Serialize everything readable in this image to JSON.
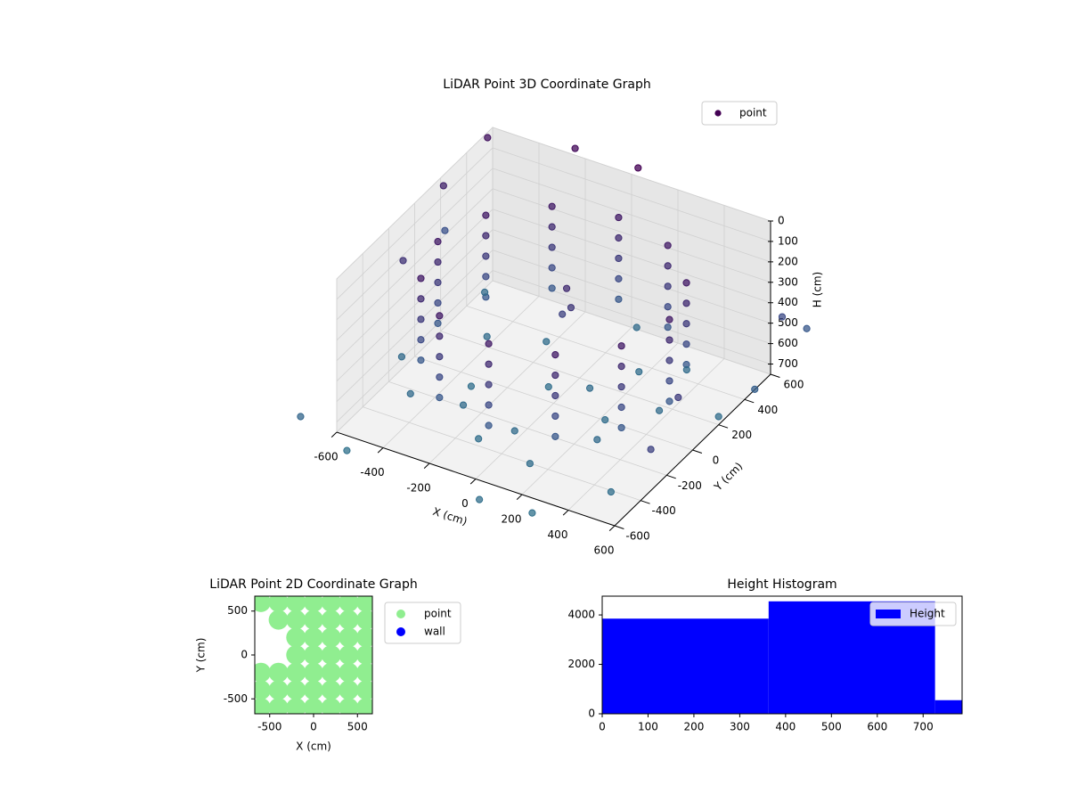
{
  "chart_data": [
    {
      "type": "scatter3d",
      "title": "LiDAR Point 3D Coordinate Graph",
      "xlabel": "X (cm)",
      "ylabel": "Y (cm)",
      "zlabel": "H (cm)",
      "xlim": [
        -600,
        600
      ],
      "ylim": [
        -600,
        600
      ],
      "zlim": [
        0,
        750
      ],
      "z_inverted": true,
      "xticks": [
        -600,
        -400,
        -200,
        0,
        200,
        400,
        600
      ],
      "yticks": [
        -600,
        -400,
        -200,
        0,
        200,
        400,
        600
      ],
      "zticks": [
        0,
        100,
        200,
        300,
        400,
        500,
        600,
        700
      ],
      "cmap": "viridis",
      "clim": [
        0,
        2000
      ],
      "grid": true,
      "series": [
        {
          "name": "point",
          "color": "#440154",
          "x": [
            500,
            433,
            250,
            0,
            -250,
            -433,
            -500,
            -433,
            -250,
            0,
            250,
            433,
            500,
            433,
            250,
            0,
            -250,
            -433,
            -500,
            -433,
            -250,
            0,
            250,
            433,
            500,
            433,
            250,
            0,
            -250,
            -433,
            -500,
            -433,
            -250,
            0,
            250,
            433,
            500,
            433,
            250,
            0,
            -250,
            -433,
            -500,
            -433,
            -250,
            0,
            250,
            433,
            500,
            433,
            250,
            0,
            -250,
            -433,
            -500,
            -433,
            -250,
            0,
            250,
            433,
            100,
            -200,
            300,
            -300,
            0,
            200,
            -100,
            400,
            -400,
            150,
            -450,
            350,
            -50,
            250,
            -250,
            500,
            -550,
            50,
            600,
            -600,
            -650,
            -700,
            700,
            650,
            -700,
            700,
            -500,
            300,
            -300,
            0,
            -650,
            700,
            100,
            -750,
            650,
            0,
            30,
            -30
          ],
          "y": [
            0,
            250,
            433,
            500,
            433,
            250,
            0,
            -250,
            -433,
            -500,
            -433,
            -250,
            0,
            250,
            433,
            500,
            433,
            250,
            0,
            -250,
            -433,
            -500,
            -433,
            -250,
            0,
            250,
            433,
            500,
            433,
            250,
            0,
            -250,
            -433,
            -500,
            -433,
            -250,
            0,
            250,
            433,
            500,
            433,
            250,
            0,
            -250,
            -433,
            -500,
            -433,
            -250,
            0,
            250,
            433,
            500,
            433,
            250,
            0,
            -250,
            -433,
            -500,
            -433,
            -250,
            100,
            300,
            -200,
            -100,
            -300,
            300,
            -400,
            100,
            200,
            -450,
            -300,
            400,
            50,
            -50,
            -250,
            -450,
            450,
            550,
            200,
            -100,
            650,
            400,
            -500,
            600,
            -700,
            300,
            -700,
            -700,
            700,
            650,
            0,
            700,
            -750,
            500,
            -200,
            100,
            80,
            120
          ],
          "h": [
            150,
            150,
            150,
            150,
            150,
            150,
            150,
            150,
            150,
            150,
            150,
            150,
            250,
            250,
            250,
            250,
            250,
            250,
            250,
            250,
            250,
            250,
            250,
            250,
            350,
            350,
            350,
            350,
            350,
            350,
            350,
            350,
            350,
            350,
            350,
            350,
            450,
            450,
            450,
            450,
            450,
            450,
            450,
            450,
            450,
            450,
            450,
            450,
            550,
            550,
            550,
            550,
            550,
            550,
            550,
            550,
            550,
            550,
            550,
            550,
            700,
            710,
            690,
            720,
            700,
            705,
            715,
            695,
            700,
            710,
            690,
            700,
            720,
            705,
            700,
            715,
            695,
            700,
            710,
            690,
            100,
            200,
            400,
            450,
            650,
            600,
            740,
            740,
            50,
            0,
            300,
            550,
            720,
            500,
            350,
            250,
            320,
            400
          ]
        }
      ]
    },
    {
      "type": "scatter",
      "title": "LiDAR Point 2D Coordinate Graph",
      "xlabel": "X (cm)",
      "ylabel": "Y (cm)",
      "xlim": [
        -670,
        670
      ],
      "ylim": [
        -670,
        670
      ],
      "xticks": [
        -500,
        0,
        500
      ],
      "yticks": [
        -500,
        0,
        500
      ],
      "series": [
        {
          "name": "point",
          "color": "#90ee90",
          "x": [
            -600,
            -600,
            -600,
            -600,
            -400,
            -400,
            -400,
            -400,
            -400,
            -200,
            -200,
            -200,
            -200,
            -200,
            -200,
            -200,
            0,
            0,
            0,
            0,
            0,
            0,
            0,
            200,
            200,
            200,
            200,
            200,
            200,
            200,
            400,
            400,
            400,
            400,
            400,
            400,
            400,
            600,
            600,
            600,
            600,
            600,
            600,
            600
          ],
          "y": [
            -600,
            -400,
            -200,
            600,
            -600,
            -400,
            -200,
            400,
            600,
            -600,
            -400,
            -200,
            0,
            200,
            400,
            600,
            -600,
            -400,
            -200,
            0,
            200,
            400,
            600,
            -600,
            -400,
            -200,
            0,
            200,
            400,
            600,
            -600,
            -400,
            -200,
            0,
            200,
            400,
            600,
            -600,
            -400,
            -200,
            0,
            200,
            400,
            600
          ]
        },
        {
          "name": "wall",
          "color": "#0000ff",
          "x": [],
          "y": []
        }
      ]
    },
    {
      "type": "histogram",
      "title": "Height Histogram",
      "bins": [
        0,
        363,
        726,
        785
      ],
      "series": [
        {
          "name": "Height",
          "color": "#0000ff",
          "values": [
            3850,
            4550,
            550
          ]
        }
      ],
      "xlim": [
        0,
        785
      ],
      "ylim": [
        0,
        4760
      ],
      "xticks": [
        0,
        100,
        200,
        300,
        400,
        500,
        600,
        700
      ],
      "yticks": [
        0,
        2000,
        4000
      ]
    }
  ]
}
